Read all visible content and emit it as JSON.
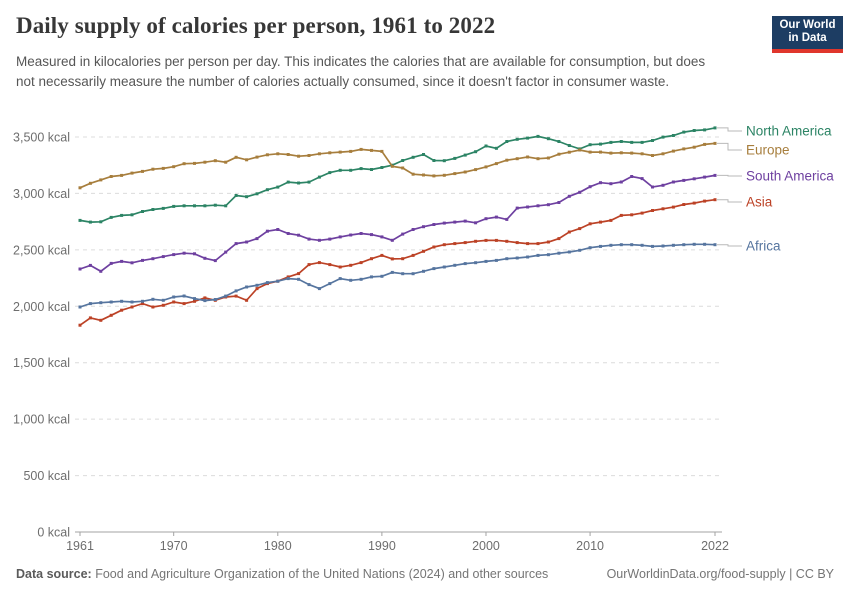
{
  "header": {
    "logo_line1": "Our World",
    "logo_line2": "in Data",
    "logo_bg": "#1d3d63",
    "logo_stripe": "#e0362c"
  },
  "footer": {
    "label": "Data source:",
    "text": "Food and Agriculture Organization of the United Nations (2024) and other sources",
    "credit": "OurWorldinData.org/food-supply | CC BY"
  },
  "chart_data": {
    "type": "line",
    "title": "Daily supply of calories per person, 1961 to 2022",
    "subtitle": "Measured in kilocalories per person per day. This indicates the calories that are available for consumption, but does not necessarily measure the number of calories actually consumed, since it doesn't factor in consumer waste.",
    "xlabel": "",
    "ylabel": "",
    "xlim": [
      1961,
      2022
    ],
    "ylim": [
      0,
      3500
    ],
    "grid": "horizontal-dashed",
    "legend_position": "right-of-line-ends",
    "x_ticks": [
      1961,
      1970,
      1980,
      1990,
      2000,
      2010,
      2022
    ],
    "y_ticks": [
      {
        "v": 0,
        "label": "0 kcal"
      },
      {
        "v": 500,
        "label": "500 kcal"
      },
      {
        "v": 1000,
        "label": "1,000 kcal"
      },
      {
        "v": 1500,
        "label": "1,500 kcal"
      },
      {
        "v": 2000,
        "label": "2,000 kcal"
      },
      {
        "v": 2500,
        "label": "2,500 kcal"
      },
      {
        "v": 3000,
        "label": "3,000 kcal"
      },
      {
        "v": 3500,
        "label": "3,500 kcal"
      }
    ],
    "x": [
      1961,
      1962,
      1963,
      1964,
      1965,
      1966,
      1967,
      1968,
      1969,
      1970,
      1971,
      1972,
      1973,
      1974,
      1975,
      1976,
      1977,
      1978,
      1979,
      1980,
      1981,
      1982,
      1983,
      1984,
      1985,
      1986,
      1987,
      1988,
      1989,
      1990,
      1991,
      1992,
      1993,
      1994,
      1995,
      1996,
      1997,
      1998,
      1999,
      2000,
      2001,
      2002,
      2003,
      2004,
      2005,
      2006,
      2007,
      2008,
      2009,
      2010,
      2011,
      2012,
      2013,
      2014,
      2015,
      2016,
      2017,
      2018,
      2019,
      2020,
      2021,
      2022
    ],
    "series": [
      {
        "name": "North America",
        "color": "#2C8465",
        "label_y": 131,
        "values": [
          2761,
          2746,
          2749,
          2788,
          2805,
          2811,
          2840,
          2858,
          2867,
          2885,
          2890,
          2890,
          2890,
          2896,
          2890,
          2982,
          2971,
          2997,
          3033,
          3056,
          3100,
          3092,
          3100,
          3145,
          3185,
          3205,
          3205,
          3220,
          3212,
          3230,
          3250,
          3292,
          3320,
          3345,
          3292,
          3290,
          3310,
          3340,
          3370,
          3420,
          3400,
          3460,
          3480,
          3490,
          3505,
          3485,
          3460,
          3425,
          3395,
          3432,
          3437,
          3452,
          3460,
          3452,
          3452,
          3469,
          3499,
          3513,
          3543,
          3558,
          3563,
          3581
        ]
      },
      {
        "name": "Europe",
        "color": "#A77E3D",
        "label_y": 150,
        "values": [
          3050,
          3090,
          3120,
          3150,
          3160,
          3180,
          3195,
          3215,
          3222,
          3237,
          3263,
          3266,
          3277,
          3290,
          3277,
          3320,
          3298,
          3322,
          3342,
          3351,
          3345,
          3330,
          3336,
          3351,
          3360,
          3366,
          3372,
          3390,
          3381,
          3372,
          3240,
          3225,
          3170,
          3163,
          3155,
          3161,
          3176,
          3190,
          3211,
          3235,
          3264,
          3294,
          3308,
          3323,
          3308,
          3314,
          3348,
          3365,
          3385,
          3366,
          3366,
          3357,
          3360,
          3357,
          3351,
          3336,
          3351,
          3375,
          3395,
          3410,
          3434,
          3443
        ]
      },
      {
        "name": "South America",
        "color": "#6E40A0",
        "label_y": 176,
        "values": [
          2330,
          2362,
          2310,
          2380,
          2398,
          2385,
          2407,
          2422,
          2440,
          2458,
          2470,
          2465,
          2425,
          2405,
          2480,
          2555,
          2570,
          2600,
          2665,
          2680,
          2645,
          2630,
          2595,
          2585,
          2595,
          2615,
          2632,
          2645,
          2635,
          2615,
          2585,
          2640,
          2680,
          2705,
          2725,
          2737,
          2746,
          2755,
          2740,
          2776,
          2790,
          2770,
          2870,
          2880,
          2890,
          2900,
          2920,
          2975,
          3010,
          3060,
          3095,
          3086,
          3101,
          3150,
          3131,
          3057,
          3072,
          3101,
          3115,
          3130,
          3145,
          3160
        ]
      },
      {
        "name": "Asia",
        "color": "#BC4226",
        "label_y": 202,
        "values": [
          1832,
          1897,
          1876,
          1920,
          1965,
          1994,
          2024,
          1994,
          2009,
          2038,
          2024,
          2044,
          2074,
          2053,
          2082,
          2090,
          2053,
          2157,
          2201,
          2222,
          2260,
          2290,
          2369,
          2387,
          2369,
          2348,
          2363,
          2387,
          2422,
          2451,
          2420,
          2422,
          2451,
          2487,
          2525,
          2546,
          2555,
          2564,
          2576,
          2584,
          2584,
          2576,
          2564,
          2555,
          2555,
          2570,
          2600,
          2658,
          2688,
          2731,
          2746,
          2761,
          2805,
          2811,
          2826,
          2849,
          2864,
          2879,
          2902,
          2914,
          2932,
          2944
        ]
      },
      {
        "name": "Africa",
        "color": "#56759F",
        "label_y": 246,
        "values": [
          1994,
          2024,
          2032,
          2038,
          2044,
          2038,
          2044,
          2062,
          2053,
          2082,
          2091,
          2068,
          2050,
          2060,
          2090,
          2136,
          2171,
          2186,
          2210,
          2222,
          2245,
          2239,
          2192,
          2157,
          2201,
          2245,
          2230,
          2239,
          2260,
          2266,
          2300,
          2289,
          2289,
          2310,
          2334,
          2348,
          2363,
          2378,
          2386,
          2398,
          2407,
          2422,
          2428,
          2437,
          2451,
          2457,
          2470,
          2481,
          2496,
          2519,
          2531,
          2540,
          2546,
          2546,
          2540,
          2531,
          2534,
          2540,
          2546,
          2549,
          2549,
          2546
        ]
      }
    ]
  }
}
